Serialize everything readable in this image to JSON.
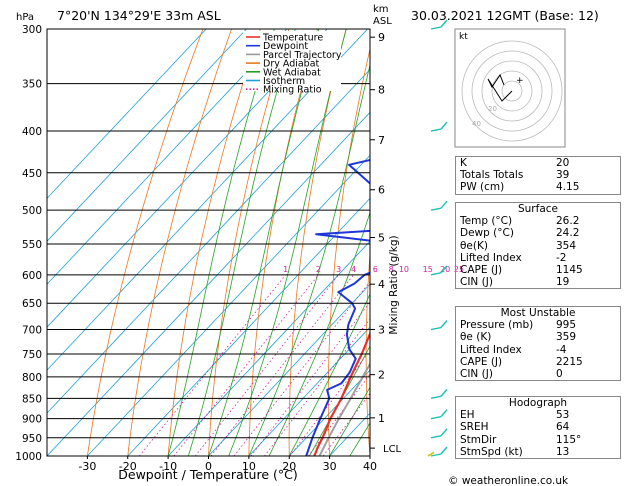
{
  "header": {
    "location": "7°20'N  134°29'E  33m  ASL",
    "datetime": "30.03.2021  12GMT  (Base: 12)",
    "hpa_label": "hPa",
    "km_label": "km",
    "asl_label": "ASL",
    "mixing_axis_label": "Mixing Ratio (g/kg)",
    "xlabel": "Dewpoint / Temperature (°C)",
    "lcl_label": "LCL",
    "credit": "© weatheronline.co.uk",
    "hodo_unit": "kt"
  },
  "legend": [
    {
      "label": "Temperature",
      "color": "#e8312a",
      "style": "solid"
    },
    {
      "label": "Dewpoint",
      "color": "#1d35d9",
      "style": "solid"
    },
    {
      "label": "Parcel Trajectory",
      "color": "#999999",
      "style": "solid"
    },
    {
      "label": "Dry Adiabat",
      "color": "#e8781e",
      "style": "solid"
    },
    {
      "label": "Wet Adiabat",
      "color": "#25a025",
      "style": "solid"
    },
    {
      "label": "Isotherm",
      "color": "#1fa0d8",
      "style": "solid"
    },
    {
      "label": "Mixing Ratio",
      "color": "#d01f9d",
      "style": "dotted"
    }
  ],
  "colors": {
    "temperature": "#e8312a",
    "dewpoint": "#1d35d9",
    "parcel": "#a0a0a0",
    "dry_adiabat": "#e8781e",
    "wet_adiabat": "#25a025",
    "isotherm": "#1fa0d8",
    "mixing_ratio": "#d01f9d",
    "wind_barb": "#19c2b5"
  },
  "chart_data": {
    "type": "skew-T log-P sounding",
    "title": "7°20'N  134°29'E  33m  ASL",
    "xlabel": "Dewpoint / Temperature (°C)",
    "ylabel": "hPa",
    "x_ticks": [
      -30,
      -20,
      -10,
      0,
      10,
      20,
      30,
      40
    ],
    "pressure_levels": [
      300,
      350,
      400,
      450,
      500,
      550,
      600,
      650,
      700,
      750,
      800,
      850,
      900,
      950,
      1000
    ],
    "altitude_ticks_km": [
      {
        "km": 1,
        "p": 898
      },
      {
        "km": 2,
        "p": 795
      },
      {
        "km": 3,
        "p": 700
      },
      {
        "km": 4,
        "p": 616
      },
      {
        "km": 5,
        "p": 540
      },
      {
        "km": 6,
        "p": 472
      },
      {
        "km": 7,
        "p": 410
      },
      {
        "km": 8,
        "p": 356
      },
      {
        "km": 9,
        "p": 307
      }
    ],
    "mixing_ratio_labels": [
      1,
      2,
      3,
      4,
      6,
      8,
      10,
      15,
      20,
      25
    ],
    "temperature_profile": [
      {
        "p": 1000,
        "t": 26.2
      },
      {
        "p": 975,
        "t": 25.0
      },
      {
        "p": 950,
        "t": 24.0
      },
      {
        "p": 925,
        "t": 22.8
      },
      {
        "p": 900,
        "t": 21.5
      },
      {
        "p": 850,
        "t": 19.5
      },
      {
        "p": 800,
        "t": 16.8
      },
      {
        "p": 750,
        "t": 14.2
      },
      {
        "p": 700,
        "t": 11.0
      },
      {
        "p": 650,
        "t": 7.5
      },
      {
        "p": 600,
        "t": 4.0
      },
      {
        "p": 550,
        "t": 0.3
      },
      {
        "p": 500,
        "t": -4.5
      },
      {
        "p": 450,
        "t": -10.0
      },
      {
        "p": 400,
        "t": -16.0
      },
      {
        "p": 370,
        "t": -21.0
      },
      {
        "p": 350,
        "t": -24.0
      },
      {
        "p": 330,
        "t": -27.5
      },
      {
        "p": 300,
        "t": -32.0
      }
    ],
    "dewpoint_profile": [
      {
        "p": 1000,
        "t": 24.2
      },
      {
        "p": 950,
        "t": 21.5
      },
      {
        "p": 900,
        "t": 19.0
      },
      {
        "p": 850,
        "t": 16.5
      },
      {
        "p": 830,
        "t": 14.0
      },
      {
        "p": 815,
        "t": 16.0
      },
      {
        "p": 790,
        "t": 15.5
      },
      {
        "p": 760,
        "t": 13.8
      },
      {
        "p": 740,
        "t": 10.0
      },
      {
        "p": 710,
        "t": 6.0
      },
      {
        "p": 690,
        "t": 4.0
      },
      {
        "p": 660,
        "t": 2.0
      },
      {
        "p": 650,
        "t": 0.0
      },
      {
        "p": 630,
        "t": -6.0
      },
      {
        "p": 615,
        "t": -4.0
      },
      {
        "p": 600,
        "t": -3.5
      },
      {
        "p": 585,
        "t": 0.0
      },
      {
        "p": 575,
        "t": 2.0
      },
      {
        "p": 565,
        "t": -6.0
      },
      {
        "p": 555,
        "t": -5.0
      },
      {
        "p": 545,
        "t": -10.0
      },
      {
        "p": 535,
        "t": -25.0
      },
      {
        "p": 530,
        "t": -12.0
      },
      {
        "p": 525,
        "t": -6.0
      },
      {
        "p": 518,
        "t": -10.0
      },
      {
        "p": 512,
        "t": -4.0
      },
      {
        "p": 505,
        "t": -15.0
      },
      {
        "p": 470,
        "t": -21.0
      },
      {
        "p": 440,
        "t": -33.0
      },
      {
        "p": 405,
        "t": -8.0
      },
      {
        "p": 400,
        "t": -17.0
      },
      {
        "p": 380,
        "t": -25.0
      },
      {
        "p": 360,
        "t": -32.0
      },
      {
        "p": 330,
        "t": -38.0
      },
      {
        "p": 300,
        "t": -20.0
      }
    ],
    "parcel_profile": [
      {
        "p": 1000,
        "t": 27.5
      },
      {
        "p": 950,
        "t": 25.5
      },
      {
        "p": 900,
        "t": 23.6
      },
      {
        "p": 850,
        "t": 21.8
      },
      {
        "p": 800,
        "t": 19.8
      },
      {
        "p": 750,
        "t": 17.6
      },
      {
        "p": 700,
        "t": 15.2
      },
      {
        "p": 650,
        "t": 12.4
      },
      {
        "p": 600,
        "t": 9.4
      },
      {
        "p": 550,
        "t": 5.8
      },
      {
        "p": 500,
        "t": 1.6
      },
      {
        "p": 450,
        "t": -3.6
      },
      {
        "p": 400,
        "t": -9.6
      },
      {
        "p": 350,
        "t": -17.0
      },
      {
        "p": 300,
        "t": -26.0
      }
    ],
    "wind_barbs": [
      {
        "p": 1000,
        "dir": 115,
        "spd": 5
      },
      {
        "p": 950,
        "dir": 120,
        "spd": 10
      },
      {
        "p": 900,
        "dir": 110,
        "spd": 10
      },
      {
        "p": 850,
        "dir": 100,
        "spd": 10
      },
      {
        "p": 700,
        "dir": 90,
        "spd": 10
      },
      {
        "p": 600,
        "dir": 80,
        "spd": 10
      },
      {
        "p": 500,
        "dir": 60,
        "spd": 10
      },
      {
        "p": 400,
        "dir": 70,
        "spd": 10
      },
      {
        "p": 300,
        "dir": 50,
        "spd": 5
      }
    ]
  },
  "hodograph": {
    "ring_labels": [
      "20",
      "40"
    ]
  },
  "indices_top": [
    {
      "k": "K",
      "v": "20"
    },
    {
      "k": "Totals Totals",
      "v": "39"
    },
    {
      "k": "PW (cm)",
      "v": "4.15"
    }
  ],
  "surface": {
    "title": "Surface",
    "rows": [
      {
        "k": "Temp (°C)",
        "v": "26.2"
      },
      {
        "k": "Dewp (°C)",
        "v": "24.2"
      },
      {
        "k": "θe(K)",
        "v": "354"
      },
      {
        "k": "Lifted Index",
        "v": "-2"
      },
      {
        "k": "CAPE (J)",
        "v": "1145"
      },
      {
        "k": "CIN (J)",
        "v": "19"
      }
    ]
  },
  "most_unstable": {
    "title": "Most Unstable",
    "rows": [
      {
        "k": "Pressure (mb)",
        "v": "995"
      },
      {
        "k": "θe (K)",
        "v": "359"
      },
      {
        "k": "Lifted Index",
        "v": "-4"
      },
      {
        "k": "CAPE (J)",
        "v": "2215"
      },
      {
        "k": "CIN (J)",
        "v": "0"
      }
    ]
  },
  "hodograph_table": {
    "title": "Hodograph",
    "rows": [
      {
        "k": "EH",
        "v": "53"
      },
      {
        "k": "SREH",
        "v": "64"
      },
      {
        "k": "StmDir",
        "v": "115°"
      },
      {
        "k": "StmSpd (kt)",
        "v": "13"
      }
    ]
  }
}
